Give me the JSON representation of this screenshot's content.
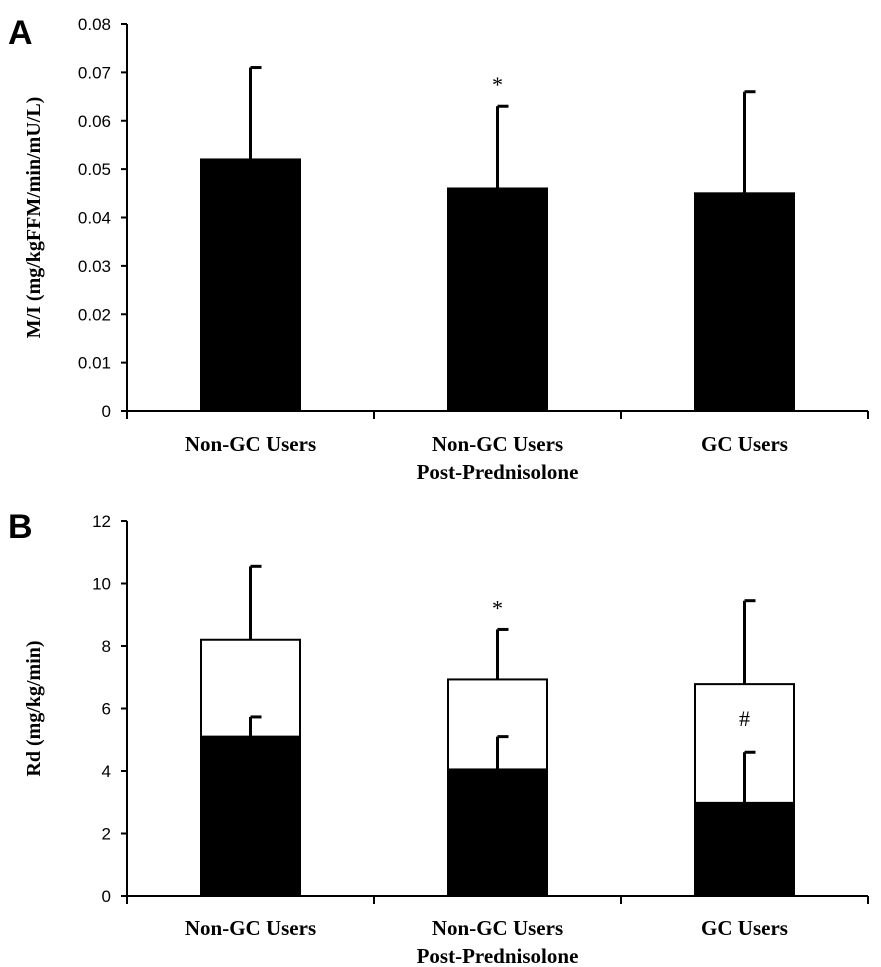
{
  "chart_data": [
    {
      "panel": "A",
      "type": "bar",
      "categories": [
        "Non-GC Users",
        "Non-GC Users\nPost-Prednisolone",
        "GC Users"
      ],
      "ylabel": "M/I (mg/kgFFM/min/mU/L)",
      "ylim": [
        0,
        0.08
      ],
      "yticks": [
        "0",
        "0.01",
        "0.02",
        "0.03",
        "0.04",
        "0.05",
        "0.06",
        "0.07",
        "0.08"
      ],
      "series": [
        {
          "values": [
            0.052,
            0.046,
            0.045
          ],
          "error": [
            0.019,
            0.017,
            0.021
          ],
          "fill": "#000000"
        }
      ],
      "annotations": [
        {
          "category": 1,
          "text": "*"
        }
      ],
      "grid": false
    },
    {
      "panel": "B",
      "type": "bar",
      "categories": [
        "Non-GC Users",
        "Non-GC Users\nPost-Prednisolone",
        "GC Users"
      ],
      "ylabel": "Rd (mg/kg/min)",
      "ylim": [
        0,
        12
      ],
      "yticks": [
        "0",
        "2",
        "4",
        "6",
        "8",
        "10",
        "12"
      ],
      "stacked_totals": true,
      "series": [
        {
          "values": [
            8.2,
            6.93,
            6.78
          ],
          "error": [
            2.35,
            1.6,
            2.67
          ],
          "fill": "#ffffff"
        },
        {
          "values": [
            5.1,
            4.05,
            2.98
          ],
          "error": [
            0.63,
            1.05,
            1.62
          ],
          "fill": "#000000"
        }
      ],
      "annotations": [
        {
          "category": 1,
          "text": "*",
          "position": "above"
        },
        {
          "category": 2,
          "text": "#",
          "position": "inside"
        }
      ],
      "grid": false
    }
  ]
}
